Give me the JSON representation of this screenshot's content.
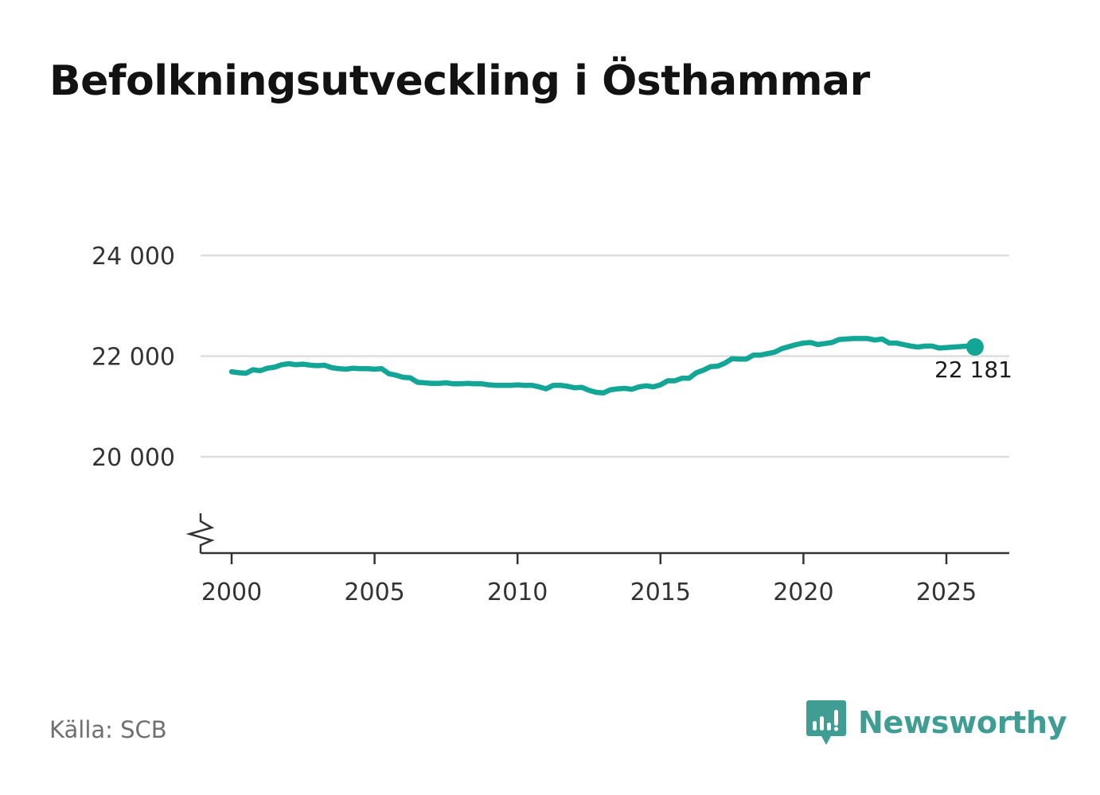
{
  "title": "Befolkningsutveckling i Östhammar",
  "source": "Källa: SCB",
  "brand": {
    "name": "Newsworthy",
    "icon": "bar-chart-speech-bubble-icon",
    "color": "#3f9d94"
  },
  "colors": {
    "line": "#13a596",
    "grid": "#dddddd",
    "axis": "#333333"
  },
  "chart_data": {
    "type": "line",
    "xlim": [
      1999.8,
      2026.4
    ],
    "ylim": [
      18000,
      24500
    ],
    "y_axis_break": true,
    "grid": "horizontal",
    "y_ticks": [
      20000,
      22000,
      24000
    ],
    "y_tick_labels": [
      "20 000",
      "22 000",
      "24 000"
    ],
    "x_ticks": [
      2000,
      2005,
      2010,
      2015,
      2020,
      2025
    ],
    "x_tick_labels": [
      "2000",
      "2005",
      "2010",
      "2015",
      "2020",
      "2025"
    ],
    "last_value_label": "22 181",
    "series": [
      {
        "x": [
          2000.0,
          2000.25,
          2000.5,
          2000.75,
          2001.0,
          2001.25,
          2001.5,
          2001.75,
          2002.0,
          2002.25,
          2002.5,
          2002.75,
          2003.0,
          2003.25,
          2003.5,
          2003.75,
          2004.0,
          2004.25,
          2004.5,
          2004.75,
          2005.0,
          2005.25,
          2005.5,
          2005.75,
          2006.0,
          2006.25,
          2006.5,
          2006.75,
          2007.0,
          2007.25,
          2007.5,
          2007.75,
          2008.0,
          2008.25,
          2008.5,
          2008.75,
          2009.0,
          2009.25,
          2009.5,
          2009.75,
          2010.0,
          2010.25,
          2010.5,
          2010.75,
          2011.0,
          2011.25,
          2011.5,
          2011.75,
          2012.0,
          2012.25,
          2012.5,
          2012.75,
          2013.0,
          2013.25,
          2013.5,
          2013.75,
          2014.0,
          2014.25,
          2014.5,
          2014.75,
          2015.0,
          2015.25,
          2015.5,
          2015.75,
          2016.0,
          2016.25,
          2016.5,
          2016.75,
          2017.0,
          2017.25,
          2017.5,
          2017.75,
          2018.0,
          2018.25,
          2018.5,
          2018.75,
          2019.0,
          2019.25,
          2019.5,
          2019.75,
          2020.0,
          2020.25,
          2020.5,
          2020.75,
          2021.0,
          2021.25,
          2021.5,
          2021.75,
          2022.0,
          2022.25,
          2022.5,
          2022.75,
          2023.0,
          2023.25,
          2023.5,
          2023.75,
          2024.0,
          2024.25,
          2024.5,
          2024.75,
          2025.0,
          2025.25,
          2025.5,
          2025.75,
          2026.0
        ],
        "y": [
          21690,
          21670,
          21660,
          21730,
          21710,
          21760,
          21780,
          21830,
          21850,
          21830,
          21840,
          21820,
          21810,
          21820,
          21770,
          21750,
          21740,
          21760,
          21750,
          21750,
          21740,
          21750,
          21650,
          21620,
          21580,
          21570,
          21480,
          21470,
          21460,
          21460,
          21470,
          21450,
          21450,
          21460,
          21450,
          21450,
          21430,
          21420,
          21420,
          21420,
          21430,
          21420,
          21420,
          21390,
          21350,
          21420,
          21420,
          21400,
          21370,
          21380,
          21320,
          21280,
          21270,
          21330,
          21350,
          21360,
          21340,
          21390,
          21410,
          21390,
          21430,
          21510,
          21510,
          21560,
          21560,
          21670,
          21720,
          21790,
          21800,
          21860,
          21950,
          21940,
          21940,
          22020,
          22020,
          22050,
          22080,
          22150,
          22190,
          22230,
          22260,
          22270,
          22230,
          22250,
          22270,
          22330,
          22340,
          22350,
          22350,
          22350,
          22320,
          22340,
          22260,
          22260,
          22230,
          22200,
          22180,
          22200,
          22200,
          22160,
          22170,
          22180,
          22190,
          22200,
          22181
        ]
      }
    ]
  }
}
